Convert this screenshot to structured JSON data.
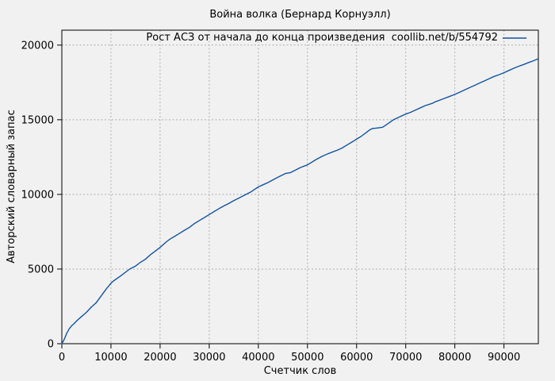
{
  "window": {
    "title": "Война волка (Бернард Корнуэлл)"
  },
  "colors": {
    "background": "#f1f1f1",
    "line": "#1253a2",
    "grid": "#b0b0b0",
    "border": "#000000",
    "text": "#000000"
  },
  "chart_data": {
    "type": "line",
    "title": "Война волка (Бернард Корнуэлл)",
    "xlabel": "Счетчик слов",
    "ylabel": "Авторский словарный запас",
    "xlim": [
      0,
      97000
    ],
    "ylim": [
      0,
      21000
    ],
    "xticks": [
      0,
      10000,
      20000,
      30000,
      40000,
      50000,
      60000,
      70000,
      80000,
      90000
    ],
    "yticks": [
      0,
      5000,
      10000,
      15000,
      20000
    ],
    "grid": true,
    "grid_style": "dashed",
    "legend": {
      "position": "top-right-inside",
      "entries": [
        {
          "label": "Рост АСЗ от начала до конца произведения  coollib.net/b/554792",
          "color": "#1253a2"
        }
      ]
    },
    "series": [
      {
        "name": "Рост АСЗ от начала до конца произведения  coollib.net/b/554792",
        "color": "#1253a2",
        "points": [
          [
            0,
            0
          ],
          [
            500,
            300
          ],
          [
            1000,
            700
          ],
          [
            1500,
            1000
          ],
          [
            2000,
            1200
          ],
          [
            2500,
            1350
          ],
          [
            3000,
            1520
          ],
          [
            4000,
            1820
          ],
          [
            5000,
            2100
          ],
          [
            6000,
            2450
          ],
          [
            7000,
            2750
          ],
          [
            8000,
            3200
          ],
          [
            9000,
            3650
          ],
          [
            10000,
            4050
          ],
          [
            10500,
            4200
          ],
          [
            12000,
            4550
          ],
          [
            13800,
            5000
          ],
          [
            15000,
            5200
          ],
          [
            16000,
            5450
          ],
          [
            17000,
            5650
          ],
          [
            18000,
            5950
          ],
          [
            19000,
            6200
          ],
          [
            20000,
            6450
          ],
          [
            21300,
            6830
          ],
          [
            22000,
            7000
          ],
          [
            23000,
            7200
          ],
          [
            24000,
            7400
          ],
          [
            25000,
            7600
          ],
          [
            26000,
            7800
          ],
          [
            27000,
            8050
          ],
          [
            28000,
            8250
          ],
          [
            29000,
            8450
          ],
          [
            30000,
            8650
          ],
          [
            31000,
            8850
          ],
          [
            32000,
            9050
          ],
          [
            33000,
            9230
          ],
          [
            34000,
            9400
          ],
          [
            35000,
            9580
          ],
          [
            36000,
            9750
          ],
          [
            37500,
            10000
          ],
          [
            38500,
            10170
          ],
          [
            40000,
            10500
          ],
          [
            41000,
            10650
          ],
          [
            42000,
            10800
          ],
          [
            43000,
            10980
          ],
          [
            44000,
            11150
          ],
          [
            45500,
            11400
          ],
          [
            46500,
            11450
          ],
          [
            48000,
            11700
          ],
          [
            48600,
            11800
          ],
          [
            50000,
            11980
          ],
          [
            51800,
            12340
          ],
          [
            53000,
            12550
          ],
          [
            54000,
            12700
          ],
          [
            55000,
            12830
          ],
          [
            56000,
            12950
          ],
          [
            57000,
            13100
          ],
          [
            58000,
            13300
          ],
          [
            59000,
            13500
          ],
          [
            60000,
            13700
          ],
          [
            61000,
            13900
          ],
          [
            62000,
            14150
          ],
          [
            62800,
            14350
          ],
          [
            63300,
            14420
          ],
          [
            64000,
            14440
          ],
          [
            65300,
            14500
          ],
          [
            66000,
            14650
          ],
          [
            67500,
            15000
          ],
          [
            68500,
            15150
          ],
          [
            70000,
            15380
          ],
          [
            71000,
            15500
          ],
          [
            72000,
            15650
          ],
          [
            73000,
            15800
          ],
          [
            74000,
            15950
          ],
          [
            75400,
            16100
          ],
          [
            76000,
            16200
          ],
          [
            77000,
            16320
          ],
          [
            78000,
            16450
          ],
          [
            79000,
            16570
          ],
          [
            80000,
            16700
          ],
          [
            81000,
            16850
          ],
          [
            82000,
            17000
          ],
          [
            83000,
            17150
          ],
          [
            84000,
            17300
          ],
          [
            85000,
            17450
          ],
          [
            86000,
            17600
          ],
          [
            87000,
            17750
          ],
          [
            88000,
            17900
          ],
          [
            89000,
            18020
          ],
          [
            90000,
            18150
          ],
          [
            91000,
            18300
          ],
          [
            92000,
            18450
          ],
          [
            93000,
            18580
          ],
          [
            94000,
            18700
          ],
          [
            95000,
            18830
          ],
          [
            96000,
            18950
          ],
          [
            96800,
            19060
          ]
        ]
      }
    ]
  }
}
